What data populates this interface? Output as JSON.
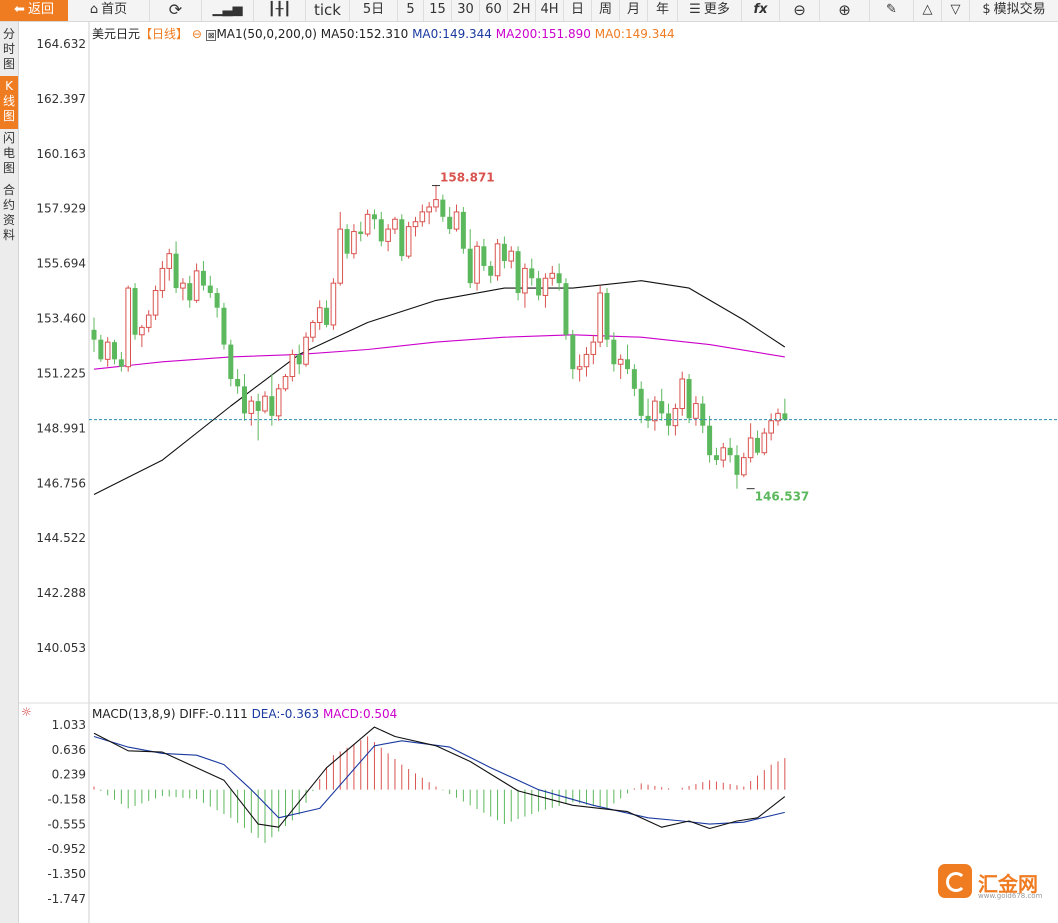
{
  "toolbar": {
    "back": "返回",
    "home": "首页",
    "tick": "tick",
    "periods": [
      "5日",
      "5",
      "15",
      "30",
      "60",
      "2H",
      "4H",
      "日",
      "周",
      "月",
      "年"
    ],
    "more": "更多",
    "fx": "fx",
    "sim": "模拟交易"
  },
  "sidebar": {
    "items": [
      "分时图",
      "K线图",
      "闪电图",
      "合约资料"
    ],
    "active_index": 1
  },
  "main_legend": {
    "symbol": "美元日元",
    "period": "【日线】",
    "ma_params": "MA1(50,0,200,0)",
    "ma50": "MA50:152.310",
    "ma0a": "MA0:149.344",
    "ma200": "MA200:151.890",
    "ma0b": "MA0:149.344"
  },
  "macd_legend": {
    "params": "MACD(13,8,9)",
    "diff": "DIFF:-0.111",
    "dea": "DEA:-0.363",
    "macd": "MACD:0.504"
  },
  "logo": {
    "name": "汇金网",
    "url": "www.gold678.com"
  },
  "colors": {
    "up": "#d9534f",
    "down": "#5cb85c",
    "ma50": "#111111",
    "ma200": "#cc00cc",
    "price_line": "#2a8db0",
    "accent": "#f07c22"
  },
  "chart_data": [
    {
      "type": "candlestick",
      "title": "美元日元【日线】",
      "y_ticks": [
        "164.632",
        "162.397",
        "160.163",
        "157.929",
        "155.694",
        "153.460",
        "151.225",
        "148.991",
        "146.756",
        "144.522",
        "142.288",
        "140.053"
      ],
      "ylim": [
        139.2,
        165.3
      ],
      "current_price": 149.344,
      "annotations": [
        {
          "label": "158.871",
          "value": 158.871,
          "type": "high",
          "bar_index": 50
        },
        {
          "label": "146.537",
          "value": 146.537,
          "type": "low",
          "bar_index": 96
        }
      ],
      "candles": [
        [
          153.0,
          153.5,
          152.1,
          152.6
        ],
        [
          152.6,
          152.8,
          151.7,
          151.8
        ],
        [
          151.8,
          152.7,
          151.5,
          152.5
        ],
        [
          152.5,
          152.6,
          151.6,
          151.8
        ],
        [
          151.8,
          152.1,
          151.3,
          151.5
        ],
        [
          151.5,
          154.8,
          151.3,
          154.7
        ],
        [
          154.7,
          154.9,
          152.6,
          152.8
        ],
        [
          152.8,
          153.2,
          152.3,
          153.1
        ],
        [
          153.1,
          153.8,
          152.9,
          153.6
        ],
        [
          153.6,
          154.8,
          153.4,
          154.6
        ],
        [
          154.6,
          155.8,
          154.3,
          155.5
        ],
        [
          155.5,
          156.3,
          155.0,
          156.1
        ],
        [
          156.1,
          156.6,
          154.5,
          154.7
        ],
        [
          154.7,
          155.1,
          154.2,
          154.9
        ],
        [
          154.9,
          155.2,
          153.9,
          154.2
        ],
        [
          154.2,
          155.7,
          154.1,
          155.4
        ],
        [
          155.4,
          155.8,
          154.6,
          154.8
        ],
        [
          154.8,
          155.2,
          154.3,
          154.5
        ],
        [
          154.5,
          154.7,
          153.5,
          153.9
        ],
        [
          153.9,
          154.1,
          152.2,
          152.4
        ],
        [
          152.4,
          152.6,
          150.7,
          151.0
        ],
        [
          151.0,
          151.4,
          150.4,
          150.7
        ],
        [
          150.7,
          151.2,
          149.3,
          149.6
        ],
        [
          149.6,
          150.3,
          149.1,
          150.1
        ],
        [
          150.1,
          150.4,
          148.5,
          149.7
        ],
        [
          149.7,
          150.5,
          149.6,
          150.3
        ],
        [
          150.3,
          151.2,
          149.1,
          149.5
        ],
        [
          149.5,
          150.8,
          149.3,
          150.6
        ],
        [
          150.6,
          151.2,
          150.5,
          151.1
        ],
        [
          151.1,
          152.2,
          150.9,
          152.0
        ],
        [
          152.0,
          152.4,
          151.2,
          151.6
        ],
        [
          151.6,
          152.9,
          151.5,
          152.7
        ],
        [
          152.7,
          153.4,
          152.5,
          153.3
        ],
        [
          153.3,
          154.2,
          153.0,
          153.9
        ],
        [
          153.9,
          154.2,
          153.1,
          153.2
        ],
        [
          153.2,
          155.1,
          153.0,
          154.9
        ],
        [
          154.9,
          157.8,
          154.8,
          157.1
        ],
        [
          157.1,
          157.3,
          155.9,
          156.1
        ],
        [
          156.1,
          157.3,
          155.9,
          157.0
        ],
        [
          157.0,
          157.4,
          156.6,
          156.9
        ],
        [
          156.9,
          157.9,
          156.8,
          157.7
        ],
        [
          157.7,
          157.9,
          157.1,
          157.5
        ],
        [
          157.5,
          157.8,
          156.4,
          156.6
        ],
        [
          156.6,
          157.3,
          156.2,
          157.1
        ],
        [
          157.1,
          157.6,
          156.9,
          157.5
        ],
        [
          157.5,
          157.7,
          155.8,
          156.0
        ],
        [
          156.0,
          157.4,
          155.9,
          157.2
        ],
        [
          157.2,
          157.6,
          156.8,
          157.4
        ],
        [
          157.4,
          158.1,
          157.2,
          157.8
        ],
        [
          157.8,
          158.2,
          157.3,
          158.0
        ],
        [
          158.0,
          158.9,
          157.8,
          158.3
        ],
        [
          158.3,
          158.5,
          157.4,
          157.6
        ],
        [
          157.6,
          158.0,
          156.9,
          157.1
        ],
        [
          157.1,
          158.1,
          157.0,
          157.8
        ],
        [
          157.8,
          158.0,
          156.1,
          156.3
        ],
        [
          156.3,
          157.1,
          154.7,
          154.9
        ],
        [
          154.9,
          156.6,
          154.6,
          156.4
        ],
        [
          156.4,
          156.7,
          155.4,
          155.6
        ],
        [
          155.6,
          155.8,
          154.9,
          155.2
        ],
        [
          155.2,
          156.7,
          155.0,
          156.5
        ],
        [
          156.5,
          156.8,
          155.5,
          155.8
        ],
        [
          155.8,
          156.4,
          155.5,
          156.2
        ],
        [
          156.2,
          156.4,
          154.2,
          154.5
        ],
        [
          154.5,
          155.7,
          153.9,
          155.5
        ],
        [
          155.5,
          155.9,
          154.8,
          155.1
        ],
        [
          155.1,
          155.4,
          154.2,
          154.4
        ],
        [
          154.4,
          155.3,
          153.9,
          155.1
        ],
        [
          155.1,
          155.6,
          154.8,
          155.3
        ],
        [
          155.3,
          155.7,
          154.6,
          154.9
        ],
        [
          154.9,
          155.1,
          152.6,
          152.8
        ],
        [
          152.8,
          153.0,
          151.0,
          151.4
        ],
        [
          151.4,
          152.0,
          150.9,
          151.5
        ],
        [
          151.5,
          152.3,
          151.1,
          152.0
        ],
        [
          152.0,
          152.8,
          151.6,
          152.5
        ],
        [
          152.5,
          154.8,
          152.3,
          154.5
        ],
        [
          154.5,
          154.7,
          152.3,
          152.6
        ],
        [
          152.6,
          152.9,
          151.3,
          151.6
        ],
        [
          151.6,
          152.0,
          151.0,
          151.8
        ],
        [
          151.8,
          152.4,
          151.2,
          151.4
        ],
        [
          151.4,
          151.6,
          150.3,
          150.6
        ],
        [
          150.6,
          150.9,
          149.2,
          149.5
        ],
        [
          149.5,
          150.2,
          149.0,
          149.3
        ],
        [
          149.3,
          150.3,
          148.9,
          150.1
        ],
        [
          150.1,
          150.6,
          149.3,
          149.6
        ],
        [
          149.6,
          150.0,
          148.7,
          149.1
        ],
        [
          149.1,
          150.0,
          148.7,
          149.8
        ],
        [
          149.8,
          151.3,
          149.5,
          151.0
        ],
        [
          151.0,
          151.2,
          149.2,
          149.4
        ],
        [
          149.4,
          150.3,
          149.1,
          150.0
        ],
        [
          150.0,
          150.3,
          148.8,
          149.1
        ],
        [
          149.1,
          149.5,
          147.6,
          147.9
        ],
        [
          147.9,
          148.2,
          147.5,
          147.7
        ],
        [
          147.7,
          148.4,
          147.4,
          148.2
        ],
        [
          148.2,
          148.6,
          147.6,
          147.9
        ],
        [
          147.9,
          148.3,
          146.537,
          147.1
        ],
        [
          147.1,
          148.0,
          147.0,
          147.8
        ],
        [
          147.8,
          149.2,
          147.6,
          148.6
        ],
        [
          148.6,
          148.9,
          147.9,
          148.0
        ],
        [
          148.0,
          149.0,
          147.9,
          148.8
        ],
        [
          148.8,
          149.6,
          148.5,
          149.3
        ],
        [
          149.3,
          149.8,
          149.1,
          149.6
        ],
        [
          149.6,
          150.2,
          149.3,
          149.344
        ]
      ],
      "series": [
        {
          "name": "MA50",
          "x": [
            0,
            10,
            20,
            30,
            40,
            50,
            60,
            70,
            80,
            87,
            95,
            101
          ],
          "values": [
            146.3,
            147.7,
            149.9,
            152.0,
            153.3,
            154.2,
            154.7,
            154.7,
            155.0,
            154.7,
            153.4,
            152.3
          ]
        },
        {
          "name": "MA200",
          "x": [
            0,
            10,
            20,
            30,
            40,
            50,
            60,
            70,
            80,
            90,
            101
          ],
          "values": [
            151.4,
            151.7,
            151.9,
            152.0,
            152.2,
            152.5,
            152.7,
            152.8,
            152.7,
            152.4,
            151.9
          ]
        }
      ]
    },
    {
      "type": "macd",
      "title": "MACD(13,8,9)",
      "y_ticks": [
        "1.033",
        "0.636",
        "0.239",
        "-0.158",
        "-0.555",
        "-0.952",
        "-1.350",
        "-1.747"
      ],
      "ylim": [
        -1.95,
        1.18
      ],
      "series": [
        {
          "name": "DIFF",
          "x": [
            0,
            5,
            10,
            14,
            19,
            24,
            27,
            34,
            41,
            44,
            50,
            55,
            62,
            70,
            78,
            83,
            87,
            90,
            94,
            97,
            101
          ],
          "values": [
            0.9,
            0.62,
            0.6,
            0.4,
            0.15,
            -0.55,
            -0.6,
            0.35,
            1.0,
            0.85,
            0.7,
            0.45,
            -0.02,
            -0.25,
            -0.35,
            -0.6,
            -0.5,
            -0.62,
            -0.5,
            -0.45,
            -0.111
          ]
        },
        {
          "name": "DEA",
          "x": [
            0,
            5,
            10,
            15,
            19,
            23,
            27,
            33,
            41,
            45,
            52,
            58,
            65,
            73,
            81,
            86,
            90,
            95,
            101
          ],
          "values": [
            0.85,
            0.68,
            0.58,
            0.55,
            0.4,
            0.0,
            -0.45,
            -0.3,
            0.7,
            0.78,
            0.68,
            0.35,
            0.0,
            -0.25,
            -0.45,
            -0.5,
            -0.55,
            -0.52,
            -0.363
          ]
        }
      ],
      "histogram_x": [
        0,
        5,
        10,
        15,
        20,
        25,
        30,
        35,
        40,
        45,
        50,
        55,
        60,
        65,
        70,
        75,
        80,
        85,
        90,
        95,
        99,
        101
      ],
      "histogram_values": [
        0.05,
        -0.3,
        -0.1,
        -0.15,
        -0.45,
        -0.85,
        -0.4,
        0.55,
        0.85,
        0.4,
        0.05,
        -0.25,
        -0.55,
        -0.35,
        -0.2,
        -0.3,
        0.1,
        0.0,
        0.15,
        0.05,
        0.4,
        0.504
      ]
    }
  ]
}
